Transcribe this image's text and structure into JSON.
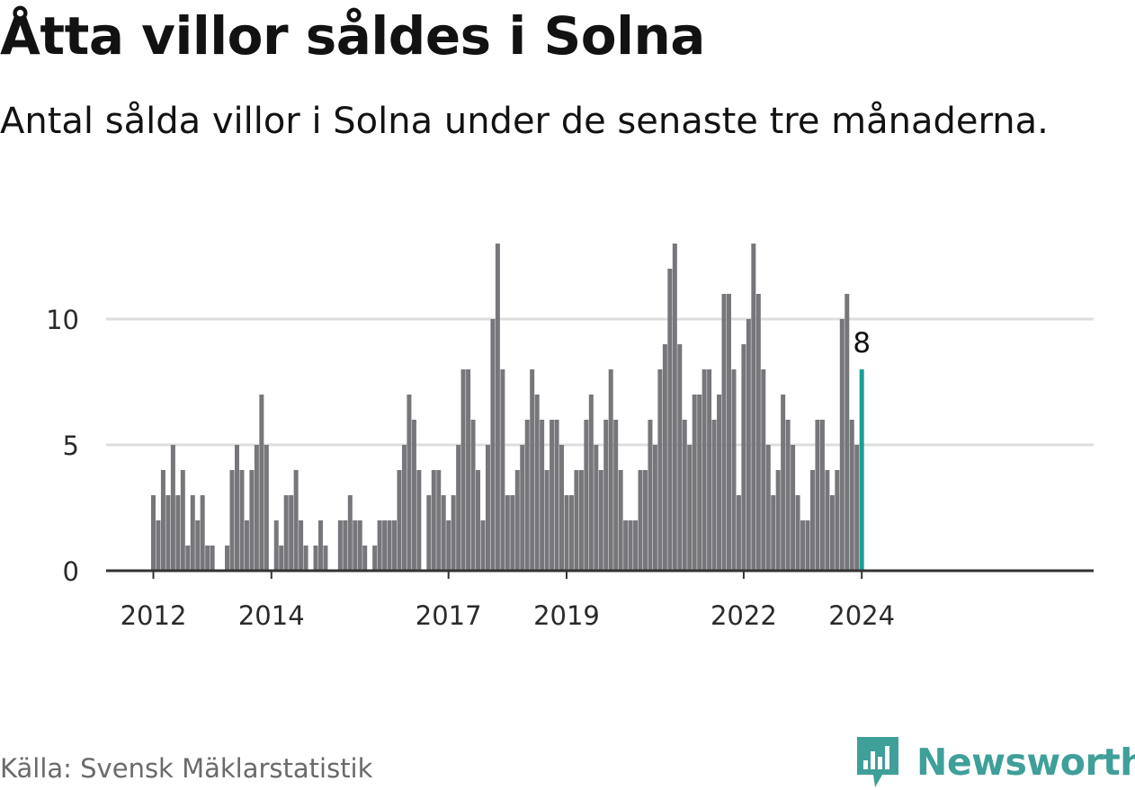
{
  "header": {
    "title": "Åtta villor såldes i Solna",
    "subtitle": "Antal sålda villor i Solna under de senaste tre månaderna."
  },
  "footer": {
    "source": "Källa: Svensk Mäklarstatistik",
    "brand": "Newsworthy"
  },
  "colors": {
    "bar": "#77767b",
    "highlight": "#1a9e98",
    "grid": "#dddddd",
    "axis": "#333333",
    "brand": "#3f9f99"
  },
  "chart_data": {
    "type": "bar",
    "title": "Åtta villor såldes i Solna",
    "subtitle": "Antal sålda villor i Solna under de senaste tre månaderna.",
    "xlabel": "",
    "ylabel": "",
    "start_month": "2012-01",
    "end_month": "2024-01",
    "ylim": [
      0,
      13.5
    ],
    "yticks": [
      0,
      5,
      10
    ],
    "xtick_labels": [
      "2012",
      "2014",
      "2017",
      "2019",
      "2022",
      "2024"
    ],
    "values": [
      3,
      2,
      4,
      3,
      5,
      3,
      4,
      1,
      3,
      2,
      3,
      1,
      1,
      0,
      0,
      1,
      4,
      5,
      4,
      2,
      4,
      5,
      7,
      5,
      0,
      2,
      1,
      3,
      3,
      4,
      2,
      1,
      0,
      1,
      2,
      1,
      0,
      0,
      2,
      2,
      3,
      2,
      2,
      1,
      0,
      1,
      2,
      2,
      2,
      2,
      4,
      5,
      7,
      6,
      4,
      0,
      3,
      4,
      4,
      3,
      2,
      3,
      5,
      8,
      8,
      6,
      4,
      2,
      5,
      10,
      13,
      8,
      3,
      3,
      4,
      5,
      6,
      8,
      7,
      6,
      4,
      6,
      6,
      5,
      3,
      3,
      4,
      4,
      6,
      7,
      5,
      4,
      6,
      8,
      6,
      4,
      2,
      2,
      2,
      4,
      4,
      6,
      5,
      8,
      9,
      12,
      13,
      9,
      6,
      5,
      7,
      7,
      8,
      8,
      6,
      7,
      11,
      11,
      8,
      3,
      9,
      10,
      13,
      11,
      8,
      5,
      3,
      4,
      7,
      6,
      5,
      3,
      2,
      2,
      4,
      6,
      6,
      4,
      3,
      4,
      10,
      11,
      6,
      5,
      8
    ],
    "highlight": {
      "month": "2024-01",
      "value": 8,
      "label": "8"
    }
  }
}
